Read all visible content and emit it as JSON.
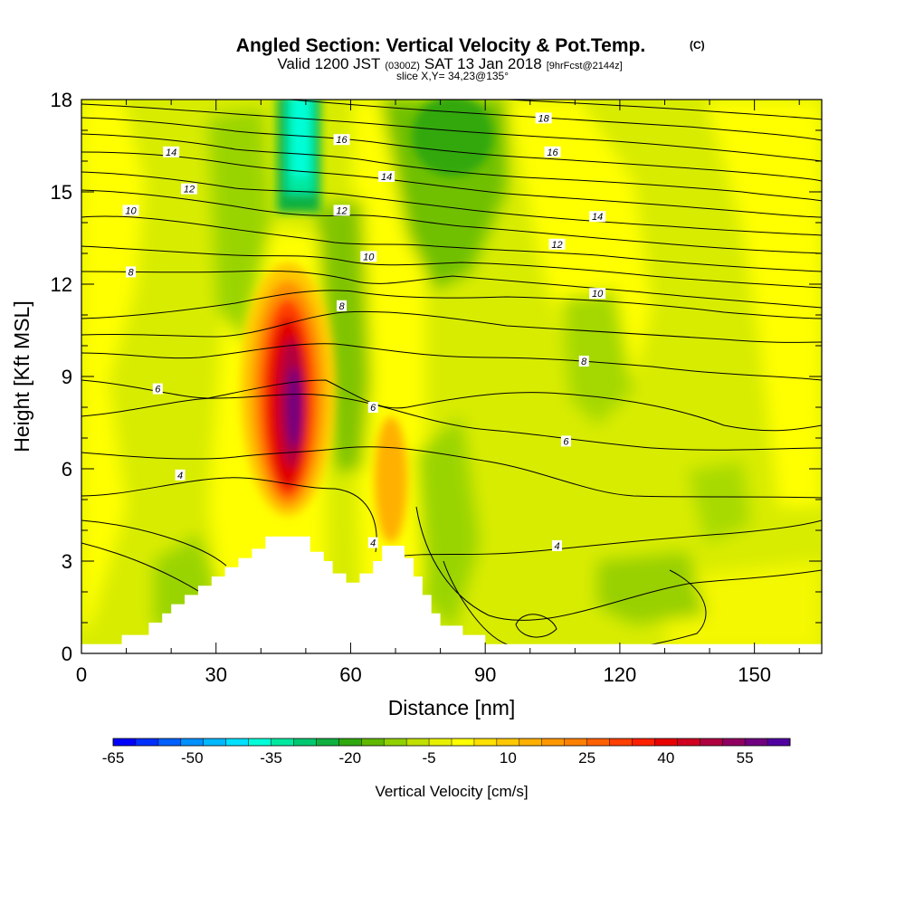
{
  "title": {
    "main": "Angled Section: Vertical Velocity & Pot.Temp.",
    "copyright": "(C)",
    "valid_prefix": "Valid 1200 JST",
    "valid_utc": "(0300Z)",
    "valid_date": "SAT 13 Jan 2018",
    "forecast": "[9hrFcst@2144z]",
    "slice": "slice X,Y= 34,23@135°"
  },
  "chart_data": {
    "type": "heatmap",
    "xlabel": "Distance [nm]",
    "ylabel": "Height [Kft MSL]",
    "xlim": [
      0,
      165
    ],
    "ylim": [
      0,
      18
    ],
    "xticks": [
      0,
      30,
      60,
      90,
      120,
      150
    ],
    "yticks": [
      0,
      3,
      6,
      9,
      12,
      15,
      18
    ],
    "colorbar": {
      "label": "Vertical Velocity [cm/s]",
      "tick_labels": [
        "-65",
        "-50",
        "-35",
        "-20",
        "-5",
        "10",
        "25",
        "40",
        "55"
      ],
      "colors": [
        "#0000ff",
        "#0030ff",
        "#0060ff",
        "#0090ff",
        "#00b8ff",
        "#00e0ff",
        "#00ffd8",
        "#00e8a0",
        "#00c870",
        "#10b040",
        "#30a810",
        "#60b800",
        "#90d000",
        "#c0e000",
        "#e8f000",
        "#ffff00",
        "#ffe000",
        "#ffc800",
        "#ffb000",
        "#ff9800",
        "#ff8000",
        "#ff6000",
        "#ff4000",
        "#ff2000",
        "#e80000",
        "#d00020",
        "#b00040",
        "#900060",
        "#700080",
        "#5000a0"
      ]
    },
    "isentrope_labels": [
      "4",
      "6",
      "8",
      "10",
      "12",
      "14",
      "16",
      "18"
    ],
    "terrain": [
      [
        0,
        0.3
      ],
      [
        9,
        0.3
      ],
      [
        9,
        0.6
      ],
      [
        15,
        0.6
      ],
      [
        15,
        1.0
      ],
      [
        18,
        1.0
      ],
      [
        18,
        1.3
      ],
      [
        20,
        1.3
      ],
      [
        20,
        1.6
      ],
      [
        23,
        1.6
      ],
      [
        23,
        1.9
      ],
      [
        26,
        1.9
      ],
      [
        26,
        2.2
      ],
      [
        29,
        2.2
      ],
      [
        29,
        2.5
      ],
      [
        32,
        2.5
      ],
      [
        32,
        2.8
      ],
      [
        35,
        2.8
      ],
      [
        35,
        3.1
      ],
      [
        38,
        3.1
      ],
      [
        38,
        3.4
      ],
      [
        41,
        3.4
      ],
      [
        41,
        3.8
      ],
      [
        51,
        3.8
      ],
      [
        51,
        3.3
      ],
      [
        54,
        3.3
      ],
      [
        54,
        3.0
      ],
      [
        56,
        3.0
      ],
      [
        56,
        2.6
      ],
      [
        59,
        2.6
      ],
      [
        59,
        2.3
      ],
      [
        62,
        2.3
      ],
      [
        62,
        2.6
      ],
      [
        65,
        2.6
      ],
      [
        65,
        3.0
      ],
      [
        67,
        3.0
      ],
      [
        67,
        3.5
      ],
      [
        72,
        3.5
      ],
      [
        72,
        3.1
      ],
      [
        74,
        3.1
      ],
      [
        74,
        2.5
      ],
      [
        76,
        2.5
      ],
      [
        76,
        1.9
      ],
      [
        78,
        1.9
      ],
      [
        78,
        1.3
      ],
      [
        80,
        1.3
      ],
      [
        80,
        0.9
      ],
      [
        85,
        0.9
      ],
      [
        85,
        0.6
      ],
      [
        90,
        0.6
      ],
      [
        90,
        0.3
      ],
      [
        165,
        0.3
      ],
      [
        165,
        0
      ],
      [
        0,
        0
      ]
    ]
  }
}
